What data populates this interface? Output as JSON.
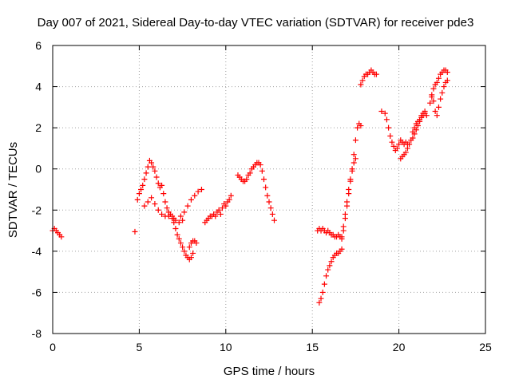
{
  "chart_data": {
    "type": "scatter",
    "title": "Day 007 of 2021, Sidereal Day-to-day VTEC variation (SDTVAR) for receiver pde3",
    "xlabel": "GPS time / hours",
    "ylabel": "SDTVAR / TECUs",
    "xlim": [
      0,
      25
    ],
    "ylim": [
      -8,
      6
    ],
    "xticks": [
      "0",
      "5",
      "10",
      "15",
      "20",
      "25"
    ],
    "yticks": [
      "-8",
      "-6",
      "-4",
      "-2",
      "0",
      "2",
      "4",
      "6"
    ],
    "grid": true,
    "marker": "+",
    "marker_color": "#ff0000",
    "series": [
      {
        "x": [
          0.0,
          0.1,
          0.2,
          0.3,
          0.4,
          0.5
        ],
        "y": [
          -3.0,
          -2.9,
          -3.0,
          -3.1,
          -3.2,
          -3.3
        ]
      },
      {
        "x": [
          4.75
        ],
        "y": [
          -3.05
        ]
      },
      {
        "x": [
          4.9,
          5.0,
          5.1,
          5.2,
          5.3,
          5.4,
          5.5,
          5.6,
          5.7,
          5.8,
          5.9,
          6.0,
          6.1,
          6.2,
          6.3,
          6.4,
          6.5,
          6.6,
          6.7,
          6.8,
          6.9,
          7.0
        ],
        "y": [
          -1.5,
          -1.2,
          -1.0,
          -0.8,
          -0.5,
          -0.2,
          0.1,
          0.4,
          0.3,
          0.1,
          -0.1,
          -0.4,
          -0.7,
          -0.9,
          -0.8,
          -1.2,
          -1.6,
          -1.9,
          -2.1,
          -2.2,
          -2.3,
          -2.4
        ]
      },
      {
        "x": [
          5.3,
          5.5,
          5.7,
          5.9,
          6.1,
          6.3,
          6.5,
          6.7,
          6.9,
          7.1,
          7.3,
          7.5
        ],
        "y": [
          -1.8,
          -1.6,
          -1.4,
          -1.7,
          -2.0,
          -2.2,
          -2.3,
          -2.3,
          -2.4,
          -2.5,
          -2.6,
          -2.5
        ]
      },
      {
        "x": [
          7.0,
          7.1,
          7.2,
          7.3,
          7.4,
          7.5,
          7.6,
          7.7,
          7.8,
          7.9,
          8.0,
          8.1
        ],
        "y": [
          -2.6,
          -2.9,
          -3.2,
          -3.4,
          -3.6,
          -3.8,
          -4.0,
          -4.2,
          -4.3,
          -4.4,
          -4.3,
          -4.1
        ]
      },
      {
        "x": [
          7.4,
          7.6,
          7.8,
          8.0,
          8.2,
          8.4,
          8.6
        ],
        "y": [
          -2.3,
          -2.1,
          -1.8,
          -1.5,
          -1.3,
          -1.1,
          -1.0
        ]
      },
      {
        "x": [
          7.9,
          8.0,
          8.1,
          8.2,
          8.3
        ],
        "y": [
          -3.8,
          -3.6,
          -3.5,
          -3.5,
          -3.6
        ]
      },
      {
        "x": [
          8.8,
          8.9,
          9.0,
          9.1,
          9.2,
          9.3,
          9.4,
          9.5,
          9.6,
          9.7,
          9.8,
          9.9,
          10.0,
          10.1,
          10.2,
          10.3
        ],
        "y": [
          -2.6,
          -2.5,
          -2.4,
          -2.3,
          -2.3,
          -2.2,
          -2.3,
          -2.1,
          -2.0,
          -2.2,
          -1.9,
          -1.7,
          -1.8,
          -1.6,
          -1.5,
          -1.3
        ]
      },
      {
        "x": [
          10.7,
          10.8,
          10.9,
          11.0,
          11.1,
          11.2,
          11.3,
          11.4,
          11.5,
          11.6,
          11.7,
          11.8,
          11.9,
          12.0,
          12.1,
          12.2,
          12.3,
          12.4,
          12.5,
          12.6,
          12.7,
          12.8
        ],
        "y": [
          -0.3,
          -0.4,
          -0.5,
          -0.6,
          -0.6,
          -0.5,
          -0.3,
          -0.2,
          0.0,
          0.1,
          0.2,
          0.3,
          0.3,
          0.2,
          -0.1,
          -0.5,
          -0.9,
          -1.3,
          -1.6,
          -1.9,
          -2.2,
          -2.5
        ]
      },
      {
        "x": [
          15.3,
          15.4,
          15.5,
          15.6,
          15.7,
          15.8,
          15.9,
          16.0,
          16.1,
          16.2,
          16.3,
          16.4,
          16.5,
          16.6,
          16.7
        ],
        "y": [
          -3.0,
          -2.9,
          -3.0,
          -2.9,
          -3.0,
          -3.1,
          -3.0,
          -3.1,
          -3.2,
          -3.2,
          -3.3,
          -3.3,
          -3.2,
          -3.3,
          -3.4
        ]
      },
      {
        "x": [
          15.4,
          15.5,
          15.6,
          15.7,
          15.8,
          15.9,
          16.0,
          16.1,
          16.2,
          16.3,
          16.4,
          16.5,
          16.6,
          16.7
        ],
        "y": [
          -6.5,
          -6.3,
          -6.0,
          -5.6,
          -5.2,
          -4.9,
          -4.7,
          -4.5,
          -4.3,
          -4.2,
          -4.1,
          -4.1,
          -4.0,
          -3.9
        ]
      },
      {
        "x": [
          16.8,
          16.9,
          17.0,
          17.1,
          17.2,
          17.3,
          17.4,
          17.5,
          17.6,
          17.7,
          17.8
        ],
        "y": [
          -3.0,
          -2.4,
          -1.8,
          -1.2,
          -0.6,
          0.0,
          0.7,
          1.4,
          2.0,
          2.2,
          2.1
        ]
      },
      {
        "x": [
          16.7,
          16.8,
          16.9,
          17.0,
          17.1,
          17.2,
          17.3,
          17.4,
          17.5
        ],
        "y": [
          -3.3,
          -2.8,
          -2.2,
          -1.6,
          -1.0,
          -0.5,
          -0.1,
          0.3,
          0.5
        ]
      },
      {
        "x": [
          17.8,
          17.9,
          18.0,
          18.1,
          18.2,
          18.3,
          18.4,
          18.5,
          18.6,
          18.7
        ],
        "y": [
          4.1,
          4.3,
          4.5,
          4.6,
          4.6,
          4.7,
          4.8,
          4.7,
          4.6,
          4.6
        ]
      },
      {
        "x": [
          19.0,
          19.2,
          19.3,
          19.4,
          19.5,
          19.6,
          19.7,
          19.8,
          19.9,
          20.0,
          20.1,
          20.2,
          20.3,
          20.4,
          20.5
        ],
        "y": [
          2.8,
          2.7,
          2.4,
          2.0,
          1.6,
          1.3,
          1.1,
          0.9,
          1.0,
          1.2,
          1.4,
          1.3,
          1.2,
          1.3,
          1.2
        ]
      },
      {
        "x": [
          20.1,
          20.2,
          20.3,
          20.4,
          20.5,
          20.6,
          20.7,
          20.8,
          20.9,
          21.0,
          21.1,
          21.2,
          21.3,
          21.4,
          21.5,
          21.6
        ],
        "y": [
          0.5,
          0.6,
          0.7,
          0.8,
          1.0,
          1.2,
          1.4,
          1.5,
          1.7,
          1.9,
          2.1,
          2.3,
          2.5,
          2.6,
          2.7,
          2.6
        ]
      },
      {
        "x": [
          20.8,
          20.9,
          21.0,
          21.1,
          21.2,
          21.3,
          21.4,
          21.5
        ],
        "y": [
          1.8,
          2.0,
          2.2,
          2.3,
          2.4,
          2.6,
          2.7,
          2.8
        ]
      },
      {
        "x": [
          21.9,
          22.0,
          22.1,
          22.2,
          22.3,
          22.4,
          22.5,
          22.6,
          22.7,
          22.8
        ],
        "y": [
          3.5,
          3.3,
          2.8,
          2.6,
          3.0,
          3.4,
          3.7,
          4.0,
          4.2,
          4.3
        ]
      },
      {
        "x": [
          21.8,
          21.9,
          22.0,
          22.1,
          22.2,
          22.3,
          22.4,
          22.5,
          22.6,
          22.7,
          22.8
        ],
        "y": [
          3.2,
          3.6,
          3.9,
          4.1,
          4.2,
          4.4,
          4.6,
          4.7,
          4.8,
          4.8,
          4.7
        ]
      }
    ]
  }
}
